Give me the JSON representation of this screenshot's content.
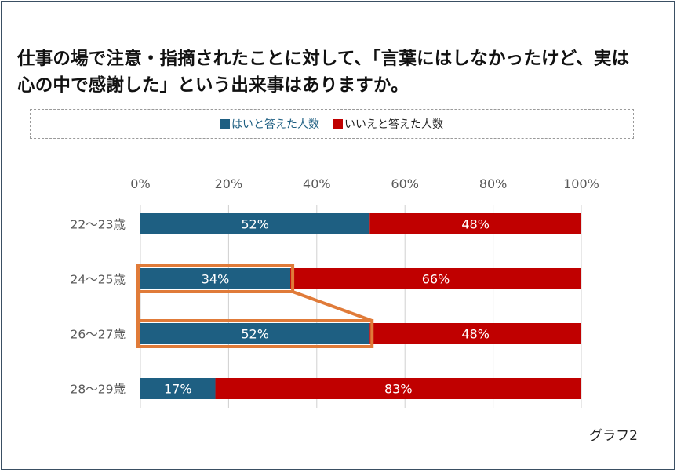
{
  "title": "仕事の場で注意・指摘されたことに対して、「言葉にはしなかったけど、実は心の中で感謝した」という出来事はありますか。",
  "caption": "グラフ2",
  "colors": {
    "yes": "#1e5f82",
    "no": "#c00000",
    "highlight": "#e07b39",
    "grid": "#d0d0d0",
    "axis_text": "#595959"
  },
  "chart_data": {
    "type": "bar",
    "orientation": "horizontal",
    "stacked": true,
    "percent": true,
    "categories": [
      "22〜23歳",
      "24〜25歳",
      "26〜27歳",
      "28〜29歳"
    ],
    "series": [
      {
        "name": "はいと答えた人数",
        "values": [
          52,
          34,
          52,
          17
        ],
        "labels": [
          "52%",
          "34%",
          "52%",
          "17%"
        ]
      },
      {
        "name": "いいえと答えた人数",
        "values": [
          48,
          66,
          48,
          83
        ],
        "labels": [
          "48%",
          "66%",
          "48%",
          "83%"
        ]
      }
    ],
    "xlim": [
      0,
      100
    ],
    "xticks": [
      "0%",
      "20%",
      "40%",
      "60%",
      "80%",
      "100%"
    ],
    "grid": "vertical",
    "legend_position": "top",
    "annotation": "highlight boxes around 24〜25歳 and 26〜27歳 yes-segments connected by a trapezoid"
  }
}
